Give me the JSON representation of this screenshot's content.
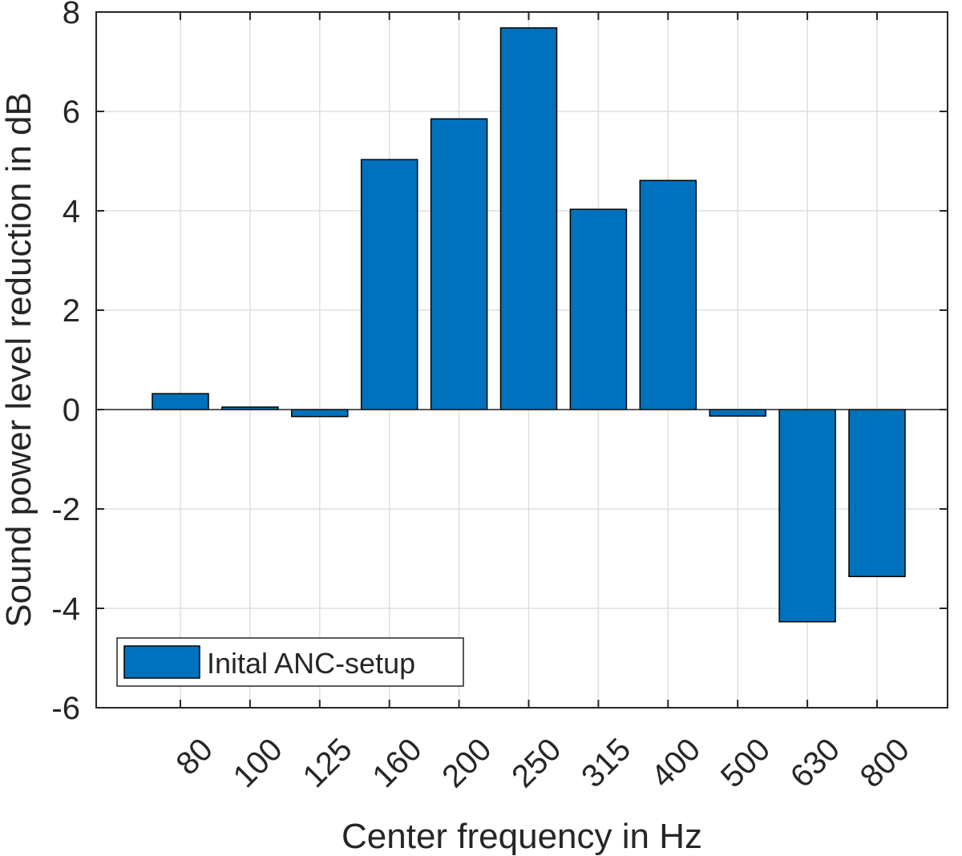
{
  "chart_data": {
    "type": "bar",
    "categories": [
      "80",
      "100",
      "125",
      "160",
      "200",
      "250",
      "315",
      "400",
      "500",
      "630",
      "800"
    ],
    "series": [
      {
        "name": "Inital ANC-setup",
        "values": [
          0.32,
          0.05,
          -0.14,
          5.03,
          5.85,
          7.68,
          4.03,
          4.61,
          -0.13,
          -4.27,
          -3.36
        ],
        "color": "#0072BD"
      }
    ],
    "xlabel": "Center frequency in Hz",
    "ylabel": "Sound power level reduction in dB",
    "ylim": [
      -6,
      8
    ],
    "yticks": [
      "-6",
      "-4",
      "-2",
      "0",
      "2",
      "4",
      "6",
      "8"
    ],
    "grid": true,
    "legend_position": "bottom-left",
    "colors": {
      "bar": "#0072BD",
      "bar_edge": "#000000",
      "grid": "#dfdfdf",
      "axis": "#262626"
    }
  }
}
